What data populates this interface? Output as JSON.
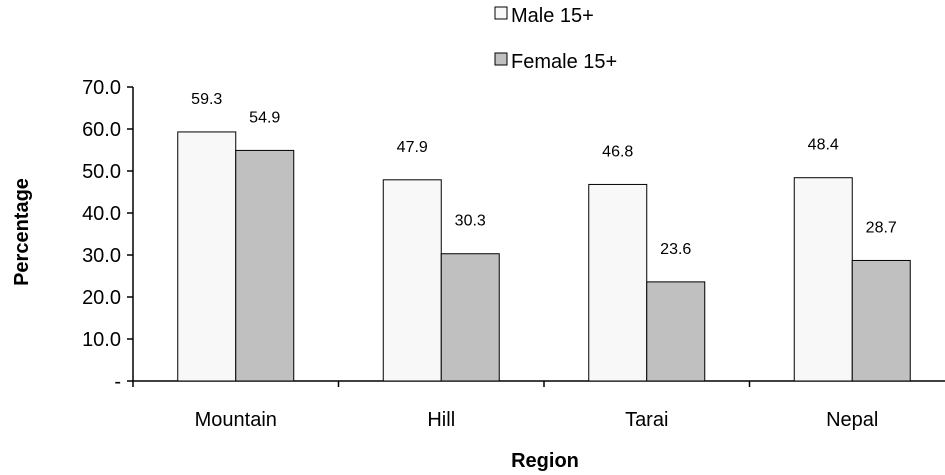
{
  "chart_data": {
    "type": "bar",
    "categories": [
      "Mountain",
      "Hill",
      "Tarai",
      "Nepal"
    ],
    "series": [
      {
        "name": "Male 15+",
        "values": [
          59.3,
          47.9,
          46.8,
          48.4
        ],
        "color": "#f8f8f8"
      },
      {
        "name": "Female 15+",
        "values": [
          54.9,
          30.3,
          23.6,
          28.7
        ],
        "color": "#c0c0c0"
      }
    ],
    "value_labels": [
      [
        "59.3",
        "47.9",
        "46.8",
        "48.4"
      ],
      [
        "54.9",
        "30.3",
        "23.6",
        "28.7"
      ]
    ],
    "xlabel": "Region",
    "ylabel": "Percentage",
    "ylim": [
      0,
      70
    ],
    "yticks": [
      "-",
      "10.0",
      "20.0",
      "30.0",
      "40.0",
      "50.0",
      "60.0",
      "70.0"
    ],
    "grid": false,
    "legend_position": "top-right"
  }
}
